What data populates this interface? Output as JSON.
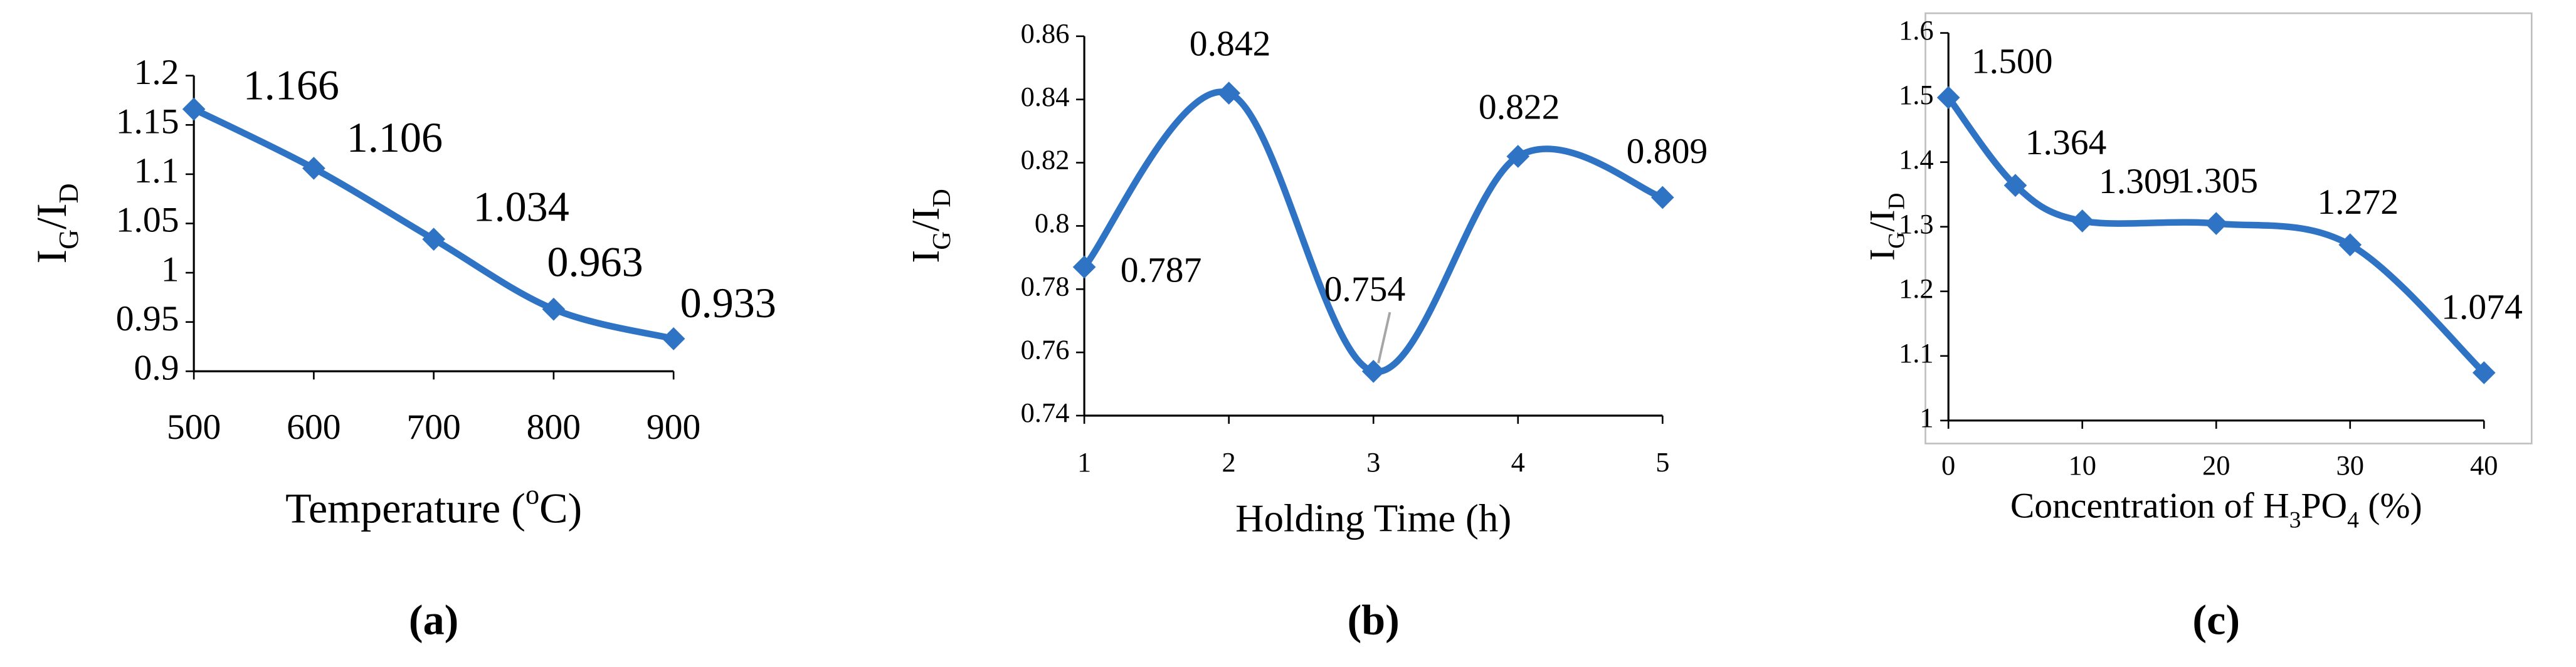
{
  "chart_data": [
    {
      "type": "line",
      "x": [
        500,
        600,
        700,
        800,
        900
      ],
      "series": [
        {
          "color": "#2f73c5",
          "values": [
            1.166,
            1.106,
            1.034,
            0.963,
            0.933
          ],
          "value_labels": [
            "1.166",
            "1.106",
            "1.034",
            "0.963",
            "0.933"
          ]
        }
      ],
      "xlim": [
        500,
        900
      ],
      "xticks": [
        500,
        600,
        700,
        800,
        900
      ],
      "ylim": [
        0.9,
        1.2
      ],
      "yticks": [
        0.9,
        0.95,
        1,
        1.05,
        1.1,
        1.15,
        1.2
      ],
      "y_label": {
        "parts": [
          "I",
          "G",
          "/I",
          "D"
        ],
        "script": "sub"
      },
      "x_label": {
        "parts": [
          "Temperature (",
          "o",
          "C)"
        ],
        "script": "sup"
      },
      "panel": "(a)",
      "frame": false
    },
    {
      "type": "line",
      "x": [
        1,
        2,
        3,
        4,
        5
      ],
      "series": [
        {
          "color": "#2f73c5",
          "values": [
            0.787,
            0.842,
            0.754,
            0.822,
            0.809
          ],
          "value_labels": [
            "0.787",
            "0.842",
            "0.754",
            "0.822",
            "0.809"
          ]
        }
      ],
      "xlim": [
        1,
        5
      ],
      "xticks": [
        1,
        2,
        3,
        4,
        5
      ],
      "ylim": [
        0.74,
        0.86
      ],
      "yticks": [
        0.74,
        0.76,
        0.78,
        0.8,
        0.82,
        0.84,
        0.86
      ],
      "y_label": {
        "parts": [
          "I",
          "G",
          "/I",
          "D"
        ],
        "script": "sub"
      },
      "x_label": {
        "parts": [
          "Holding Time (h)"
        ],
        "script": "sub"
      },
      "panel": "(b)",
      "frame": false
    },
    {
      "type": "line",
      "x": [
        0,
        5,
        10,
        20,
        30,
        40
      ],
      "series": [
        {
          "color": "#2f73c5",
          "values": [
            1.5,
            1.364,
            1.309,
            1.305,
            1.272,
            1.074
          ],
          "value_labels": [
            "1.500",
            "1.364",
            "1.309",
            "1.305",
            "1.272",
            "1.074"
          ]
        }
      ],
      "xlim": [
        0,
        40
      ],
      "xticks": [
        0,
        10,
        20,
        30,
        40
      ],
      "ylim": [
        1,
        1.6
      ],
      "yticks": [
        1,
        1.1,
        1.2,
        1.3,
        1.4,
        1.5,
        1.6
      ],
      "y_label": {
        "parts": [
          "I",
          "G",
          "/I",
          "D"
        ],
        "script": "sub"
      },
      "x_label": {
        "parts": [
          "Concentration of H",
          "3",
          "PO",
          "4",
          " (%)"
        ],
        "script": "sub"
      },
      "panel": "(c)",
      "frame": true
    }
  ]
}
